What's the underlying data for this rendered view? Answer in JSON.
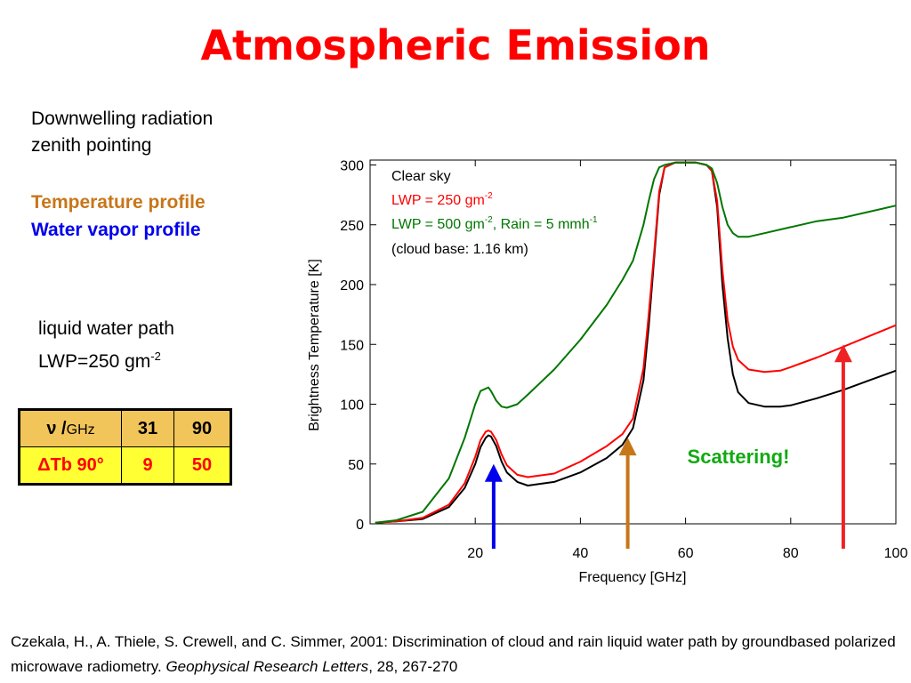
{
  "title": "Atmospheric Emission",
  "left_text": {
    "line1": "Downwelling radiation",
    "line2": "zenith pointing",
    "temp_profile": "Temperature profile",
    "vapor_profile": "Water vapor profile",
    "lwp_label": "liquid water path",
    "lwp_value": "LWP=250 gm",
    "lwp_exp": "-2"
  },
  "table": {
    "nu_symbol": "ν /",
    "nu_unit": "GHz",
    "freq": [
      "31",
      "90"
    ],
    "row_label": "ΔTb 90°",
    "values": [
      "9",
      "50"
    ]
  },
  "scattering_label": "Scattering!",
  "reference": {
    "text1": "Czekala, H., A. Thiele, S. Crewell, and C. Simmer, 2001: Discrimination of cloud and rain liquid water path by groundbased polarized microwave radiometry. ",
    "journal": "Geophysical Research Letters",
    "text2": ", 28, 267-270"
  },
  "colors": {
    "clear": "#000000",
    "lwp250": "#ff0000",
    "lwp500": "#007700",
    "orange": "#c8761a",
    "blue": "#0000ee",
    "red": "#ee2222"
  },
  "chart_data": {
    "type": "line",
    "title": "",
    "xlabel": "Frequency [GHz]",
    "ylabel": "Brightness Temperature [K]",
    "xlim": [
      0,
      100
    ],
    "ylim": [
      0,
      305
    ],
    "xticks": [
      20,
      40,
      60,
      80,
      100
    ],
    "yticks": [
      0,
      50,
      100,
      150,
      200,
      250,
      300
    ],
    "legend": {
      "line1": "Clear sky",
      "line2_main": "LWP = 250 gm",
      "line2_exp": "-2",
      "line3_main": "LWP = 500 gm",
      "line3_exp1": "-2",
      "line3_mid": ", Rain = 5 mmh",
      "line3_exp2": "-1",
      "line4": "(cloud base: 1.16 km)"
    },
    "series": [
      {
        "name": "Clear sky",
        "color": "#000000",
        "x": [
          1,
          5,
          10,
          15,
          18,
          20,
          21,
          22,
          22.5,
          23,
          24,
          25,
          26,
          28,
          30,
          35,
          40,
          45,
          48,
          50,
          52,
          53,
          54,
          55,
          56,
          58,
          60,
          62,
          64,
          65,
          66,
          67,
          68,
          69,
          70,
          72,
          75,
          78,
          80,
          85,
          90,
          95,
          100
        ],
        "y": [
          1,
          2,
          4,
          14,
          30,
          50,
          64,
          72,
          74,
          73,
          65,
          52,
          43,
          35,
          32,
          35,
          43,
          55,
          66,
          80,
          120,
          165,
          220,
          275,
          298,
          302,
          302,
          302,
          300,
          295,
          265,
          200,
          155,
          125,
          110,
          101,
          98,
          98,
          99,
          105,
          112,
          120,
          128
        ]
      },
      {
        "name": "LWP = 250 gm-2",
        "color": "#ff0000",
        "x": [
          1,
          5,
          10,
          15,
          18,
          20,
          21,
          22,
          22.5,
          23,
          24,
          25,
          26,
          28,
          30,
          35,
          40,
          45,
          48,
          50,
          52,
          53,
          54,
          55,
          56,
          58,
          60,
          62,
          64,
          65,
          66,
          67,
          68,
          69,
          70,
          72,
          75,
          78,
          80,
          85,
          90,
          95,
          100
        ],
        "y": [
          1,
          2,
          5,
          16,
          34,
          56,
          70,
          77,
          78,
          77,
          70,
          58,
          49,
          41,
          39,
          42,
          52,
          65,
          75,
          88,
          130,
          175,
          225,
          278,
          298,
          302,
          302,
          302,
          300,
          295,
          270,
          212,
          170,
          148,
          137,
          129,
          127,
          128,
          131,
          139,
          148,
          157,
          166
        ]
      },
      {
        "name": "LWP = 500 gm-2, Rain = 5 mmh-1",
        "color": "#007700",
        "x": [
          1,
          5,
          10,
          15,
          18,
          20,
          21,
          22,
          22.5,
          23,
          24,
          25,
          26,
          28,
          30,
          35,
          40,
          45,
          48,
          50,
          52,
          53,
          54,
          55,
          56,
          58,
          60,
          62,
          64,
          65,
          66,
          67,
          68,
          69,
          70,
          72,
          75,
          80,
          85,
          90,
          95,
          100
        ],
        "y": [
          1,
          3,
          10,
          38,
          72,
          100,
          111,
          113,
          114,
          111,
          103,
          98,
          97,
          100,
          108,
          129,
          154,
          183,
          204,
          220,
          250,
          270,
          288,
          298,
          300,
          302,
          302,
          302,
          300,
          297,
          285,
          265,
          250,
          243,
          240,
          240,
          243,
          248,
          253,
          256,
          261,
          266
        ]
      }
    ],
    "arrows": [
      {
        "x": 23.5,
        "y_from": 0,
        "y_to": 50,
        "color": "#0000ee"
      },
      {
        "x": 49,
        "y_from": 0,
        "y_to": 72,
        "color": "#c8761a"
      },
      {
        "x": 90,
        "y_from": 0,
        "y_to": 150,
        "color": "#ee2222"
      }
    ]
  }
}
